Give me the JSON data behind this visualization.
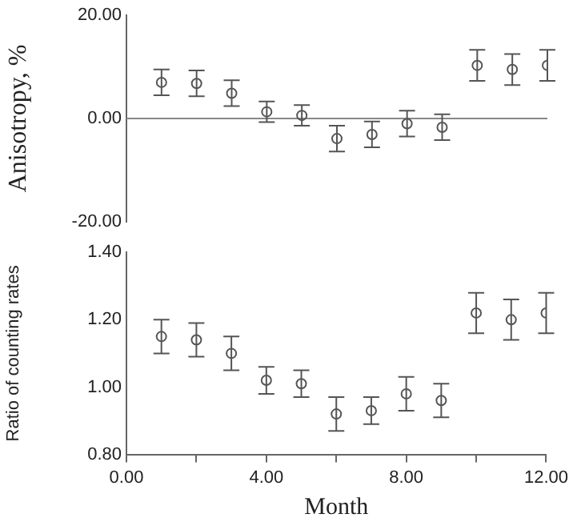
{
  "chart_data": [
    {
      "type": "scatter",
      "ylabel": "Anisotropy, %",
      "x": [
        1,
        2,
        3,
        4,
        5,
        6,
        7,
        8,
        9,
        10,
        11,
        12
      ],
      "series": [
        {
          "color": "#555555",
          "values": [
            7.0,
            6.8,
            4.9,
            1.3,
            0.6,
            -3.9,
            -3.1,
            -1.0,
            -1.7,
            10.3,
            9.5,
            10.3
          ],
          "errors": [
            2.5,
            2.5,
            2.5,
            2,
            2,
            2.5,
            2.5,
            2.5,
            2.5,
            3,
            3,
            3
          ]
        }
      ],
      "xlim": [
        0,
        12
      ],
      "ylim": [
        -20,
        20
      ],
      "yticks": [
        {
          "value": -20,
          "label": "-20.00"
        },
        {
          "value": 0,
          "label": "0.00"
        },
        {
          "value": 20,
          "label": "20.00"
        }
      ],
      "ref_lines": [
        {
          "axis": "y",
          "value": 0,
          "color": "#888888"
        }
      ],
      "tick_labels": "y",
      "grid": false,
      "legend": false,
      "marker": "circle"
    },
    {
      "type": "scatter",
      "xlabel": "Month",
      "ylabel": "Ratio of counting rates",
      "x": [
        1,
        2,
        3,
        4,
        5,
        6,
        7,
        8,
        9,
        10,
        11,
        12
      ],
      "series": [
        {
          "color": "#555555",
          "values": [
            1.15,
            1.14,
            1.1,
            1.02,
            1.01,
            0.92,
            0.93,
            0.98,
            0.96,
            1.22,
            1.2,
            1.22
          ],
          "errors": [
            0.05,
            0.05,
            0.05,
            0.04,
            0.04,
            0.05,
            0.04,
            0.05,
            0.05,
            0.06,
            0.06,
            0.06
          ]
        }
      ],
      "xlim": [
        0,
        12
      ],
      "xticks": [
        {
          "value": 0,
          "label": "0.00"
        },
        {
          "value": 2,
          "label": null
        },
        {
          "value": 4,
          "label": "4.00"
        },
        {
          "value": 6,
          "label": null
        },
        {
          "value": 8,
          "label": "8.00"
        },
        {
          "value": 10,
          "label": null
        },
        {
          "value": 12,
          "label": "12.00"
        }
      ],
      "ylim": [
        0.8,
        1.4
      ],
      "yticks": [
        {
          "value": 0.8,
          "label": "0.80"
        },
        {
          "value": 1.0,
          "label": "1.00"
        },
        {
          "value": 1.2,
          "label": "1.20"
        },
        {
          "value": 1.4,
          "label": "1.40"
        }
      ],
      "grid": false,
      "legend": false,
      "marker": "circle"
    }
  ]
}
